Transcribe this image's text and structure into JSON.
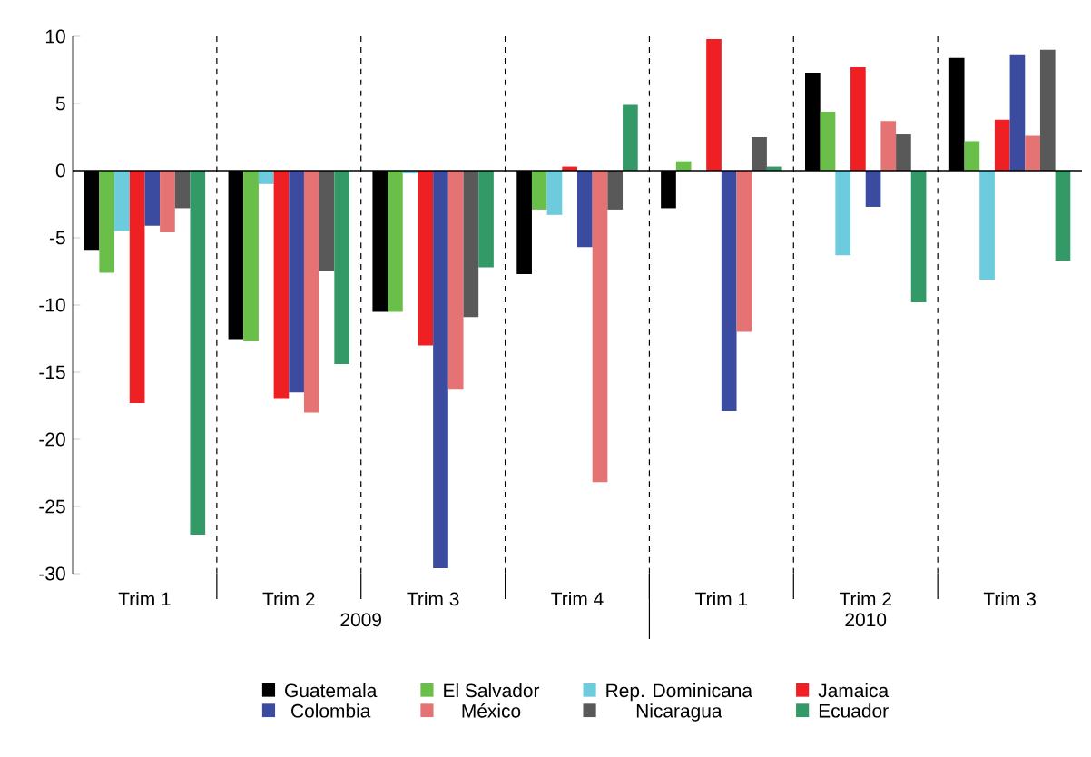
{
  "chart_data": {
    "type": "bar",
    "categories": [
      "Trim 1",
      "Trim 2",
      "Trim 3",
      "Trim 4",
      "Trim 1",
      "Trim 2",
      "Trim 3"
    ],
    "annotations": [
      "2009",
      "2010"
    ],
    "series": [
      {
        "name": "Guatemala",
        "color": "#000000",
        "values": [
          -5.9,
          -12.6,
          -10.5,
          -7.7,
          -2.8,
          7.3,
          8.4
        ]
      },
      {
        "name": "El Salvador",
        "color": "#6abf4b",
        "values": [
          -7.6,
          -12.7,
          -10.5,
          -2.9,
          0.7,
          4.4,
          2.2
        ]
      },
      {
        "name": "Rep. Dominicana",
        "color": "#6ccbdc",
        "values": [
          -4.5,
          -1.0,
          -0.2,
          -3.3,
          0,
          -6.3,
          -8.1
        ]
      },
      {
        "name": "Jamaica",
        "color": "#ee2024",
        "values": [
          -17.3,
          -17.0,
          -13.0,
          0.3,
          9.8,
          7.7,
          3.8
        ]
      },
      {
        "name": "Colombia",
        "color": "#3b4ba0",
        "values": [
          -4.1,
          -16.5,
          -29.6,
          -5.7,
          -17.9,
          -2.7,
          8.6
        ]
      },
      {
        "name": "México",
        "color": "#e57373",
        "values": [
          -4.6,
          -18.0,
          -16.3,
          -23.2,
          -12.0,
          3.7,
          2.6
        ]
      },
      {
        "name": "Nicaragua",
        "color": "#595959",
        "values": [
          -2.8,
          -7.5,
          -10.9,
          -2.9,
          2.5,
          2.7,
          9.0
        ]
      },
      {
        "name": "Ecuador",
        "color": "#339966",
        "values": [
          -27.1,
          -14.4,
          -7.2,
          4.9,
          0.3,
          -9.8,
          -6.7
        ]
      }
    ],
    "ylim": [
      -30,
      10
    ],
    "yticks": [
      -30,
      -25,
      -20,
      -15,
      -10,
      -5,
      0,
      5,
      10
    ],
    "grid": "x",
    "legend": "bottom"
  }
}
